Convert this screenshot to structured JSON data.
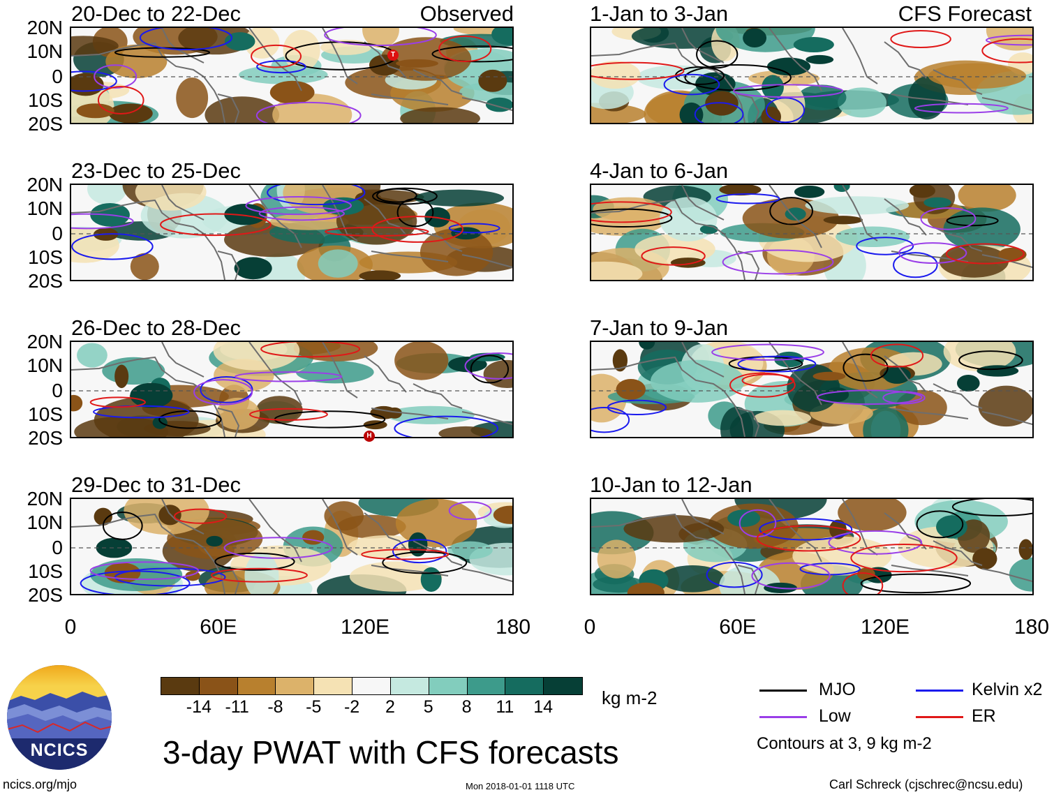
{
  "headers": {
    "observed": "Observed",
    "forecast": "CFS Forecast"
  },
  "lat_labels": [
    "20N",
    "10N",
    "0",
    "10S",
    "20S"
  ],
  "lon_labels": [
    "0",
    "60E",
    "120E",
    "180"
  ],
  "observed_panels": [
    {
      "title": "20-Dec to 22-Dec",
      "marker": "T",
      "marker_lon": 130,
      "marker_lat": 8
    },
    {
      "title": "23-Dec to 25-Dec"
    },
    {
      "title": "26-Dec to 28-Dec",
      "marker": "H",
      "marker_lon": 121,
      "marker_lat": -19
    },
    {
      "title": "29-Dec to 31-Dec"
    }
  ],
  "forecast_panels": [
    {
      "title": "1-Jan to 3-Jan"
    },
    {
      "title": "4-Jan to 6-Jan"
    },
    {
      "title": "7-Jan to 9-Jan"
    },
    {
      "title": "10-Jan to 12-Jan"
    }
  ],
  "colorbar": {
    "colors": [
      "#5a3a10",
      "#8a5318",
      "#b8802e",
      "#dcb26a",
      "#f5e2b4",
      "#f7f7f7",
      "#c5e9e0",
      "#82cdbd",
      "#3d9b8b",
      "#156c5f",
      "#063f36"
    ],
    "labels": [
      "-14",
      "-11",
      "-8",
      "-5",
      "-2",
      "2",
      "5",
      "8",
      "11",
      "14"
    ],
    "units": "kg m-2"
  },
  "legend": {
    "items": [
      {
        "label": "MJO",
        "color": "#000000"
      },
      {
        "label": "Kelvin x2",
        "color": "#1a1aee"
      },
      {
        "label": "Low",
        "color": "#9a3ee8"
      },
      {
        "label": "ER",
        "color": "#e01818"
      }
    ],
    "note": "Contours at 3, 9 kg m-2"
  },
  "title": "3-day PWAT with CFS forecasts",
  "logo_text": "NCICS",
  "footer": {
    "url": "ncics.org/mjo",
    "timestamp": "Mon 2018-01-01 1118 UTC",
    "author": "Carl Schreck (cjschrec@ncsu.edu)"
  }
}
